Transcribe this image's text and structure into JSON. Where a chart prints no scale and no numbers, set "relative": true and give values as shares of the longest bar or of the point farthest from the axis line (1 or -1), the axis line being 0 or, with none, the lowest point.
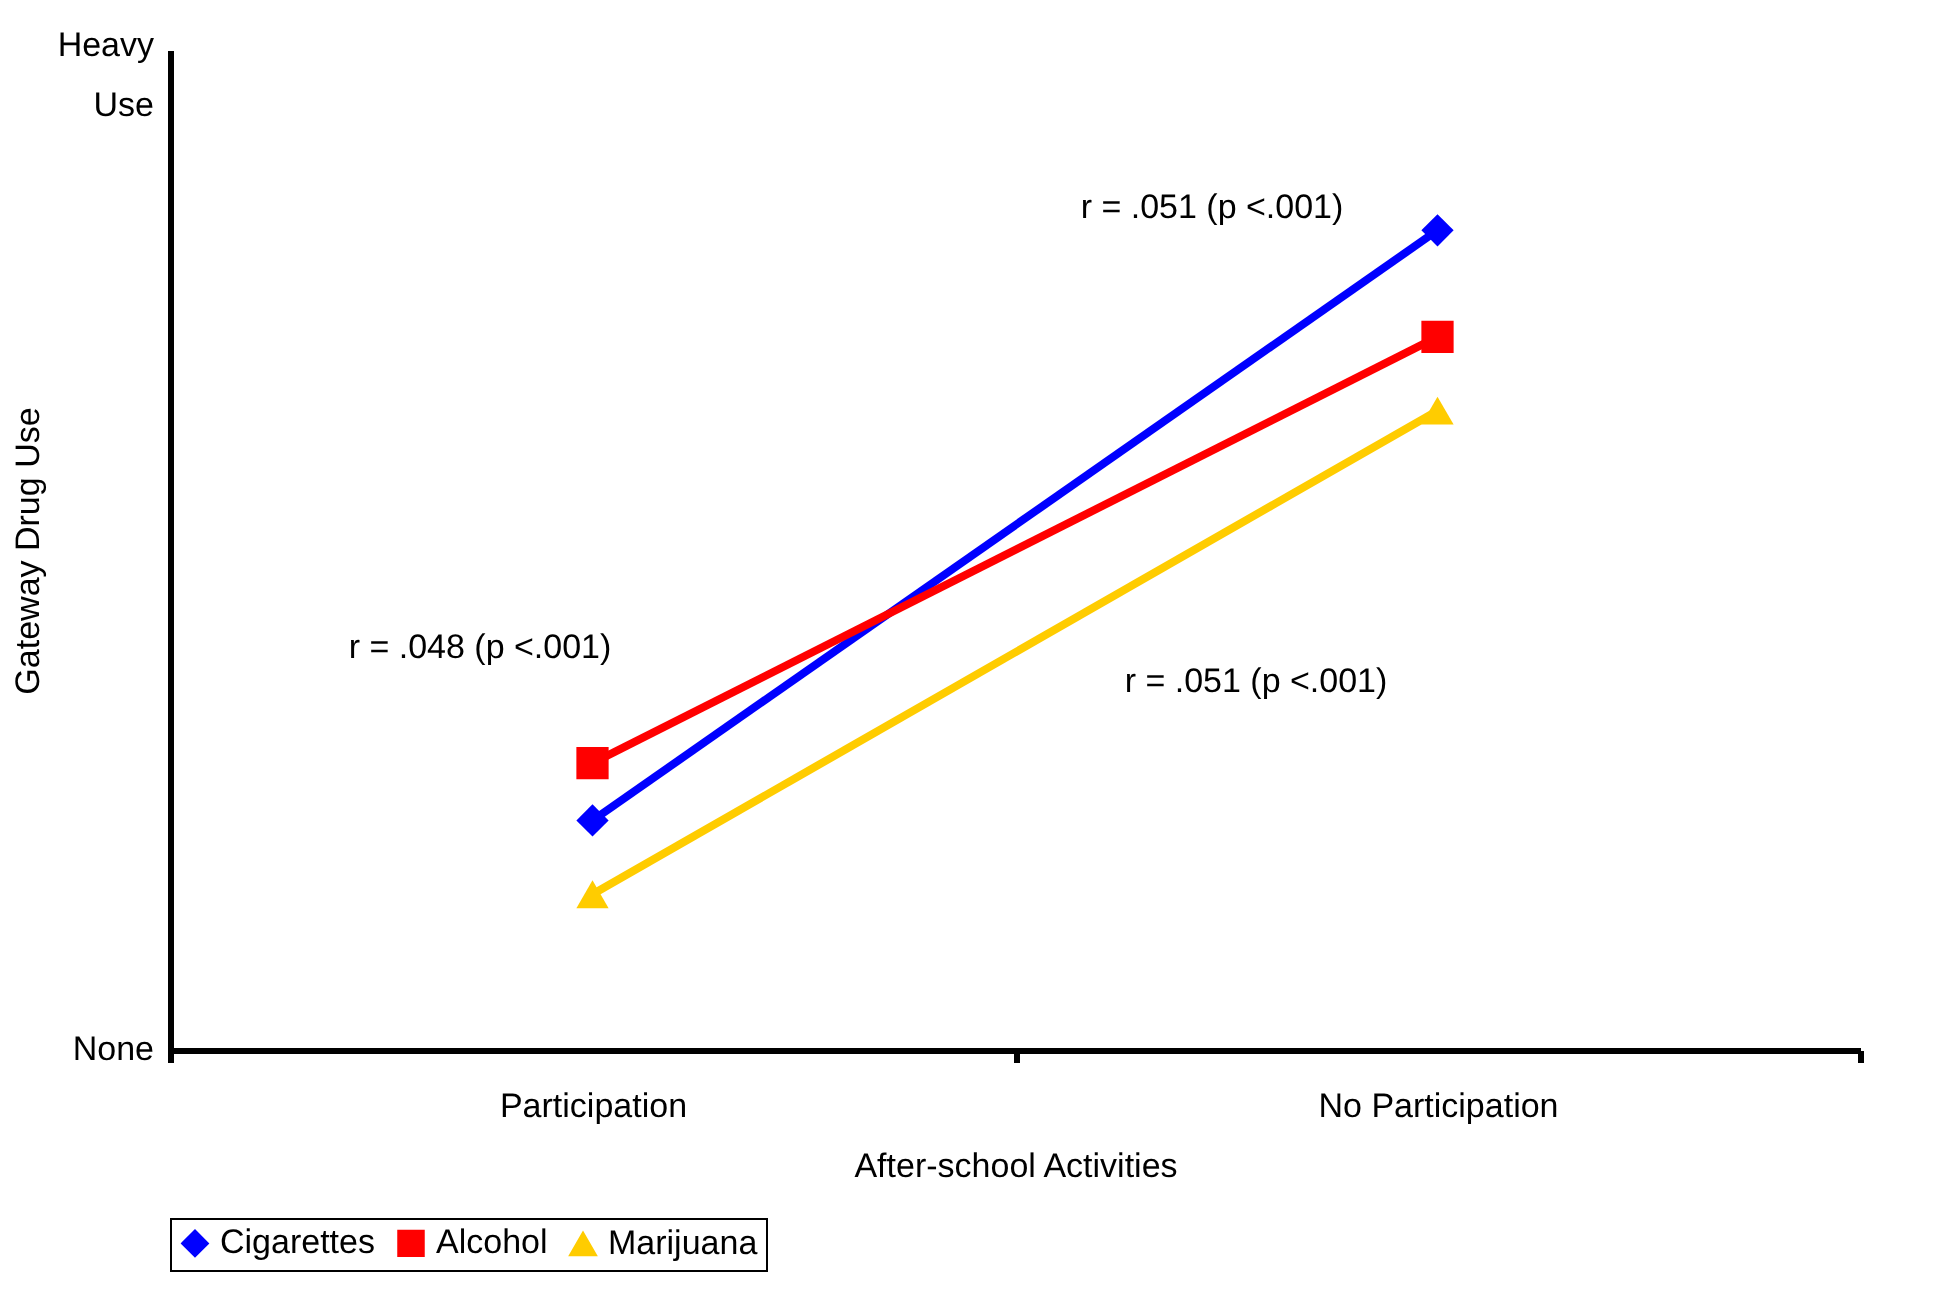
{
  "chart_data": {
    "type": "line",
    "xlabel": "After-school Activities",
    "ylabel": "Gateway Drug Use",
    "categories": [
      "Participation",
      "No Participation"
    ],
    "series": [
      {
        "name": "Cigarettes",
        "color": "#0000ff",
        "marker": "diamond",
        "values": [
          0.28,
          1
        ]
      },
      {
        "name": "Alcohol",
        "color": "#ff0000",
        "marker": "square",
        "values": [
          0.35,
          0.87
        ]
      },
      {
        "name": "Marijuana",
        "color": "#ffcc00",
        "marker": "triangle",
        "values": [
          0.19,
          0.78
        ]
      }
    ],
    "relative": true,
    "annotations": [
      "Heavy Use",
      "None",
      "r = .051 (p <.001)",
      "r = .048 (p <.001)",
      "r = .051 (p <.001)"
    ],
    "grid": false,
    "legend": "bottom",
    "line_style": "solid"
  }
}
